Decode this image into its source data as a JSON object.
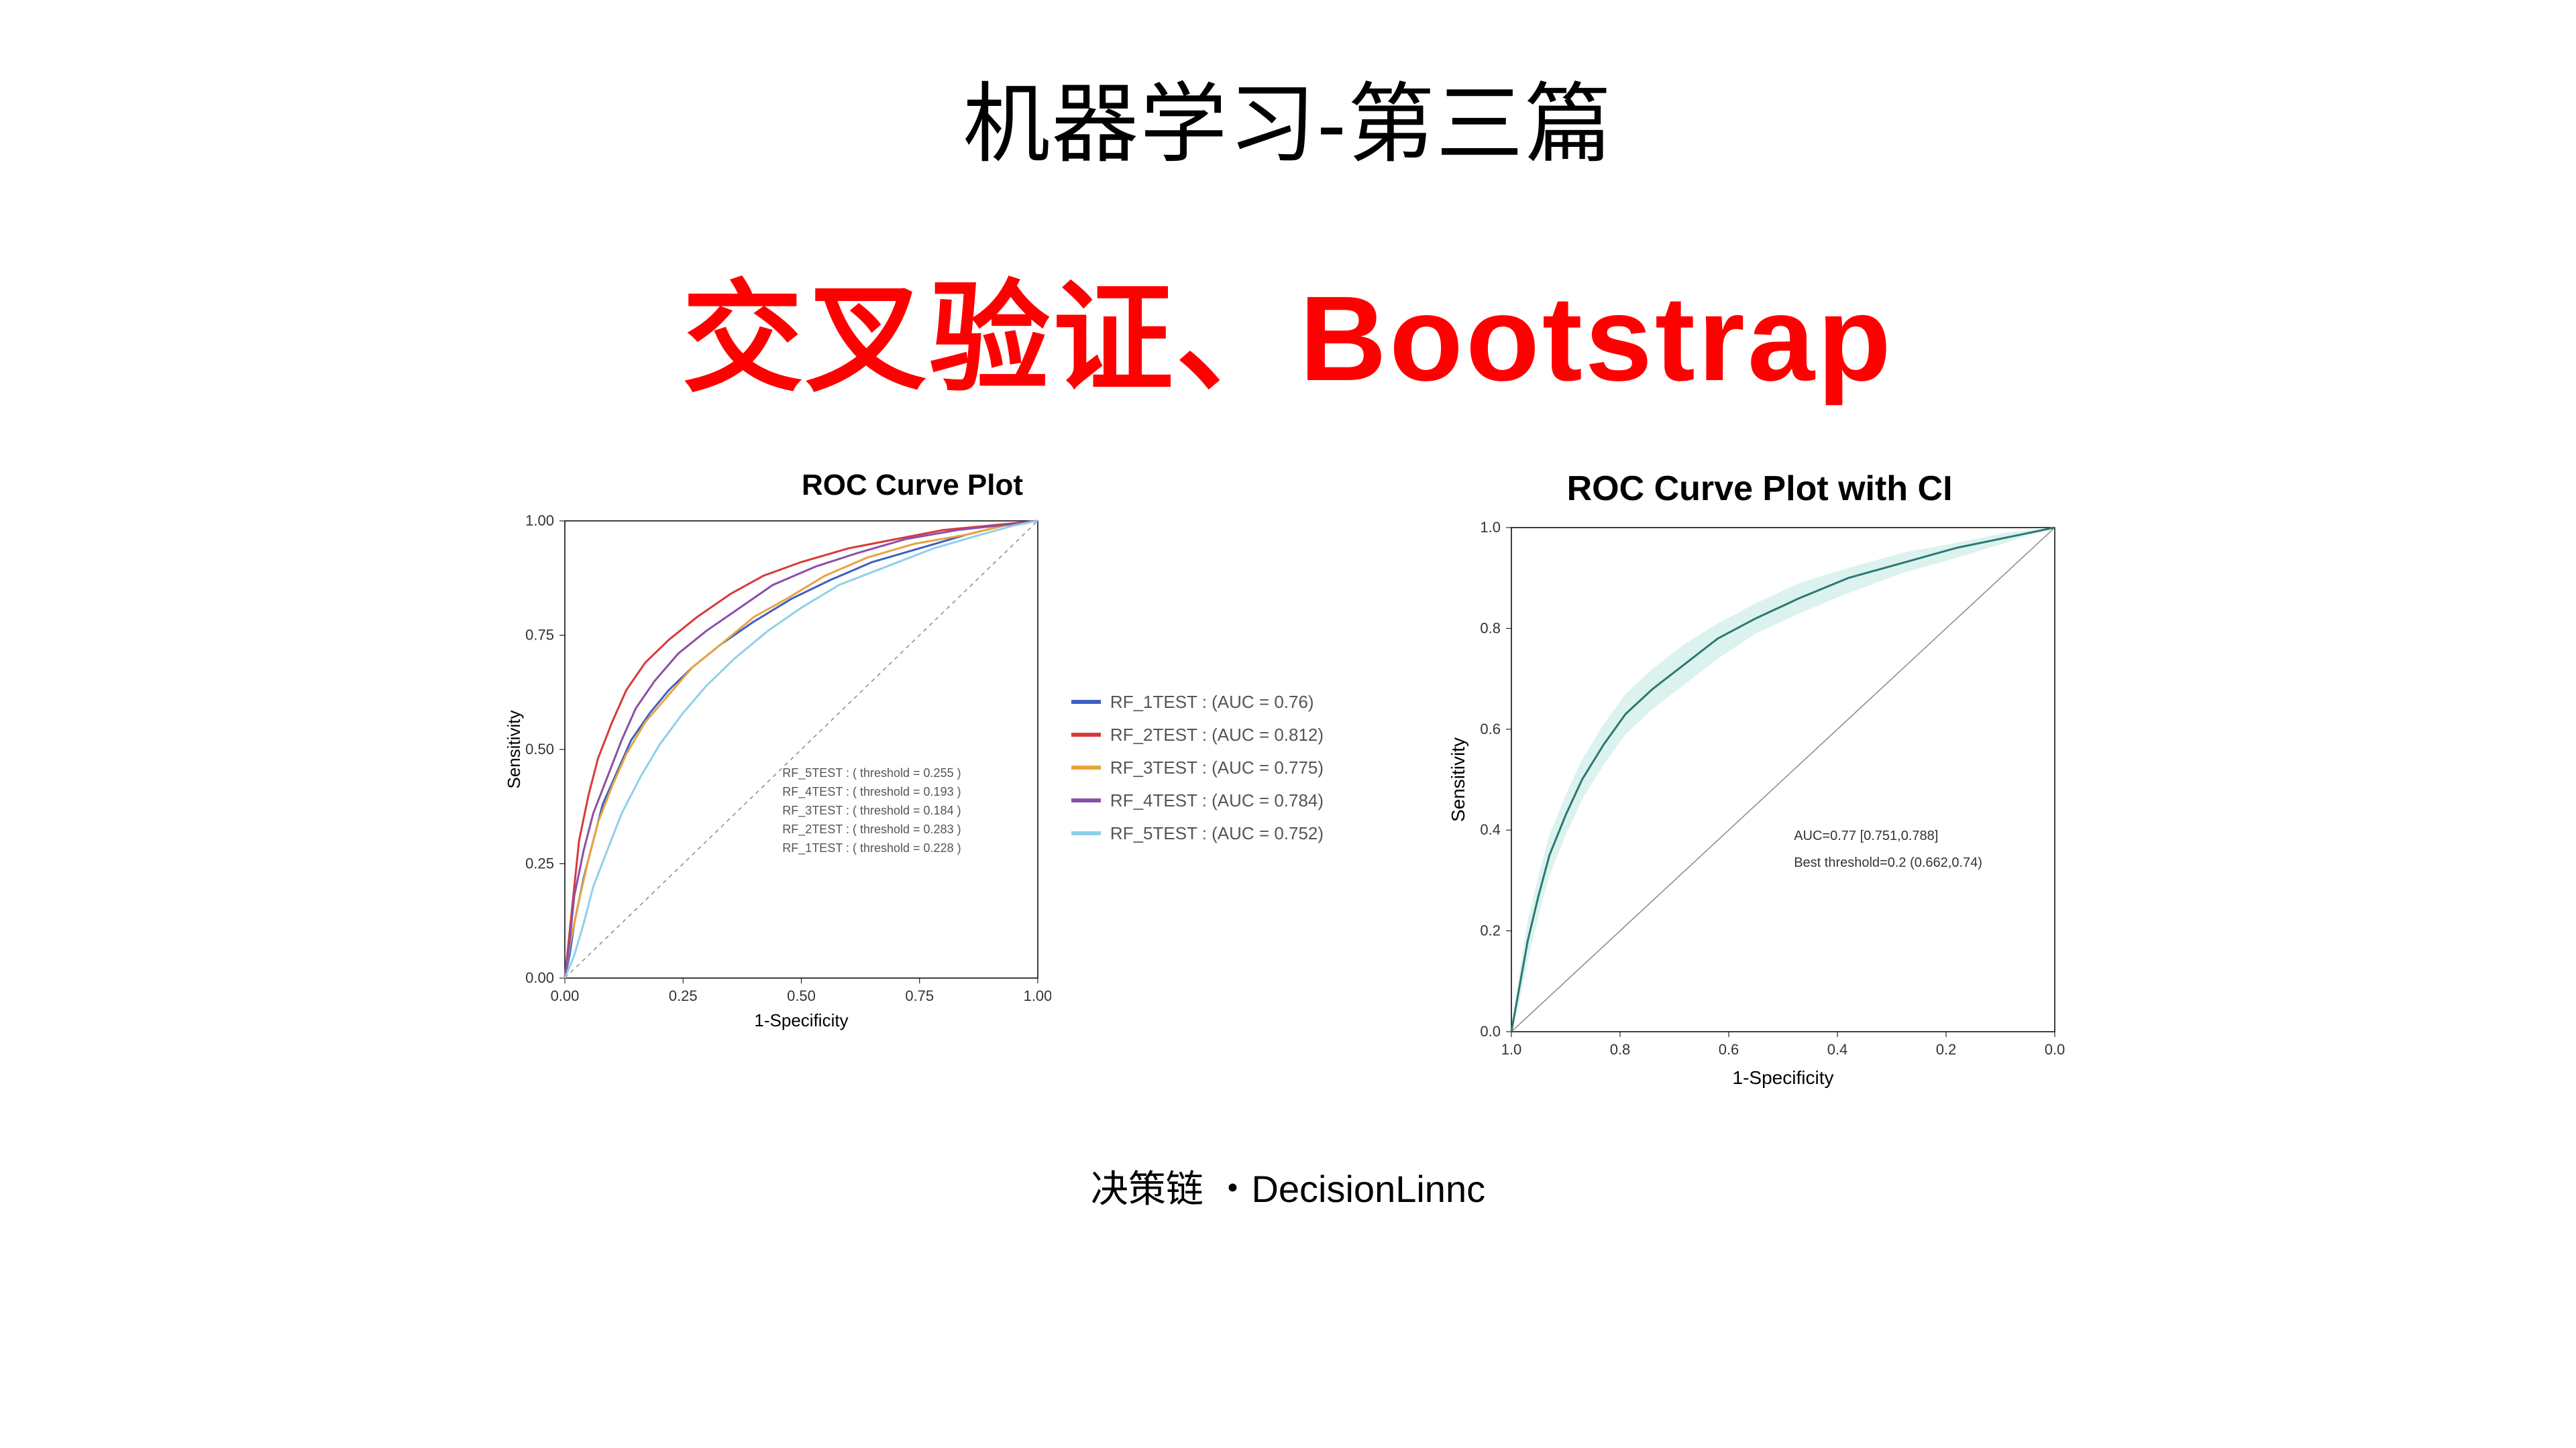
{
  "title_main": "机器学习-第三篇",
  "title_sub": "交叉验证、Bootstrap",
  "footer": "决策链 ・DecisionLinnc",
  "chart_left": {
    "title": "ROC Curve Plot",
    "xlabel": "1-Specificity",
    "ylabel": "Sensitivity",
    "xlim": [
      0,
      1
    ],
    "ylim": [
      0,
      1
    ],
    "xticks": [
      0.0,
      0.25,
      0.5,
      0.75,
      1.0
    ],
    "yticks": [
      0.0,
      0.25,
      0.5,
      0.75,
      1.0
    ],
    "xtick_labels": [
      "0.00",
      "0.25",
      "0.50",
      "0.75",
      "1.00"
    ],
    "ytick_labels": [
      "0.00",
      "0.25",
      "0.50",
      "0.75",
      "1.00"
    ],
    "background_color": "#ffffff",
    "panel_border_color": "#000000",
    "axis_font_size": 26,
    "tick_font_size": 22,
    "diagonal_color": "#888888",
    "diagonal_dash": "6,6",
    "line_width": 3,
    "series": [
      {
        "name": "RF_1TEST",
        "color": "#3b60c4",
        "auc": 0.76,
        "points": [
          [
            0,
            0
          ],
          [
            0.01,
            0.05
          ],
          [
            0.02,
            0.12
          ],
          [
            0.04,
            0.22
          ],
          [
            0.06,
            0.3
          ],
          [
            0.08,
            0.38
          ],
          [
            0.11,
            0.45
          ],
          [
            0.14,
            0.52
          ],
          [
            0.18,
            0.58
          ],
          [
            0.22,
            0.63
          ],
          [
            0.27,
            0.68
          ],
          [
            0.33,
            0.73
          ],
          [
            0.4,
            0.78
          ],
          [
            0.48,
            0.83
          ],
          [
            0.56,
            0.87
          ],
          [
            0.65,
            0.91
          ],
          [
            0.75,
            0.94
          ],
          [
            0.85,
            0.97
          ],
          [
            0.93,
            0.99
          ],
          [
            1,
            1
          ]
        ]
      },
      {
        "name": "RF_2TEST",
        "color": "#d83a3a",
        "auc": 0.812,
        "points": [
          [
            0,
            0
          ],
          [
            0.01,
            0.1
          ],
          [
            0.02,
            0.2
          ],
          [
            0.03,
            0.3
          ],
          [
            0.05,
            0.4
          ],
          [
            0.07,
            0.48
          ],
          [
            0.1,
            0.56
          ],
          [
            0.13,
            0.63
          ],
          [
            0.17,
            0.69
          ],
          [
            0.22,
            0.74
          ],
          [
            0.28,
            0.79
          ],
          [
            0.35,
            0.84
          ],
          [
            0.42,
            0.88
          ],
          [
            0.5,
            0.91
          ],
          [
            0.6,
            0.94
          ],
          [
            0.7,
            0.96
          ],
          [
            0.8,
            0.98
          ],
          [
            0.9,
            0.99
          ],
          [
            1,
            1
          ]
        ]
      },
      {
        "name": "RF_3TEST",
        "color": "#e8a33d",
        "auc": 0.775,
        "points": [
          [
            0,
            0
          ],
          [
            0.01,
            0.07
          ],
          [
            0.03,
            0.17
          ],
          [
            0.05,
            0.26
          ],
          [
            0.07,
            0.34
          ],
          [
            0.1,
            0.42
          ],
          [
            0.13,
            0.49
          ],
          [
            0.17,
            0.56
          ],
          [
            0.22,
            0.62
          ],
          [
            0.27,
            0.68
          ],
          [
            0.33,
            0.73
          ],
          [
            0.4,
            0.79
          ],
          [
            0.47,
            0.83
          ],
          [
            0.55,
            0.88
          ],
          [
            0.64,
            0.92
          ],
          [
            0.74,
            0.95
          ],
          [
            0.85,
            0.97
          ],
          [
            0.93,
            0.99
          ],
          [
            1,
            1
          ]
        ]
      },
      {
        "name": "RF_4TEST",
        "color": "#8a4fa8",
        "auc": 0.784,
        "points": [
          [
            0,
            0
          ],
          [
            0.01,
            0.08
          ],
          [
            0.02,
            0.18
          ],
          [
            0.04,
            0.28
          ],
          [
            0.06,
            0.36
          ],
          [
            0.09,
            0.44
          ],
          [
            0.12,
            0.52
          ],
          [
            0.15,
            0.59
          ],
          [
            0.19,
            0.65
          ],
          [
            0.24,
            0.71
          ],
          [
            0.3,
            0.76
          ],
          [
            0.37,
            0.81
          ],
          [
            0.44,
            0.86
          ],
          [
            0.53,
            0.9
          ],
          [
            0.62,
            0.93
          ],
          [
            0.72,
            0.96
          ],
          [
            0.83,
            0.98
          ],
          [
            0.92,
            0.99
          ],
          [
            1,
            1
          ]
        ]
      },
      {
        "name": "RF_5TEST",
        "color": "#8fd0e8",
        "auc": 0.752,
        "points": [
          [
            0,
            0
          ],
          [
            0.02,
            0.05
          ],
          [
            0.04,
            0.12
          ],
          [
            0.06,
            0.2
          ],
          [
            0.09,
            0.28
          ],
          [
            0.12,
            0.36
          ],
          [
            0.16,
            0.44
          ],
          [
            0.2,
            0.51
          ],
          [
            0.25,
            0.58
          ],
          [
            0.3,
            0.64
          ],
          [
            0.36,
            0.7
          ],
          [
            0.43,
            0.76
          ],
          [
            0.5,
            0.81
          ],
          [
            0.58,
            0.86
          ],
          [
            0.68,
            0.9
          ],
          [
            0.78,
            0.94
          ],
          [
            0.88,
            0.97
          ],
          [
            0.95,
            0.99
          ],
          [
            1,
            1
          ]
        ]
      }
    ],
    "threshold_labels": [
      "RF_5TEST : ( threshold = 0.255 )",
      "RF_4TEST : ( threshold = 0.193 )",
      "RF_3TEST : ( threshold = 0.184 )",
      "RF_2TEST : ( threshold = 0.283 )",
      "RF_1TEST : ( threshold = 0.228 )"
    ],
    "threshold_text_color": "#555555",
    "threshold_font_size": 18,
    "legend_labels": [
      "RF_1TEST : (AUC = 0.76)",
      "RF_2TEST : (AUC = 0.812)",
      "RF_3TEST : (AUC = 0.775)",
      "RF_4TEST : (AUC = 0.784)",
      "RF_5TEST : (AUC = 0.752)"
    ]
  },
  "chart_right": {
    "title": "ROC Curve Plot with CI",
    "xlabel": "1-Specificity",
    "ylabel": "Sensitivity",
    "x_reversed": true,
    "xlim": [
      1.0,
      0.0
    ],
    "ylim": [
      0,
      1
    ],
    "xticks": [
      1.0,
      0.8,
      0.6,
      0.4,
      0.2,
      0.0
    ],
    "yticks": [
      0.0,
      0.2,
      0.4,
      0.6,
      0.8,
      1.0
    ],
    "xtick_labels": [
      "1.0",
      "0.8",
      "0.6",
      "0.4",
      "0.2",
      "0.0"
    ],
    "ytick_labels": [
      "0.0",
      "0.2",
      "0.4",
      "0.6",
      "0.8",
      "1.0"
    ],
    "background_color": "#ffffff",
    "panel_border_color": "#000000",
    "axis_font_size": 28,
    "tick_font_size": 22,
    "diagonal_color": "#888888",
    "diagonal_width": 1.5,
    "line_color": "#2a7a72",
    "line_width": 3,
    "ci_fill": "#c9ebe6",
    "ci_opacity": 0.65,
    "series_center": [
      [
        0,
        0
      ],
      [
        0.015,
        0.09
      ],
      [
        0.03,
        0.18
      ],
      [
        0.05,
        0.27
      ],
      [
        0.07,
        0.35
      ],
      [
        0.1,
        0.43
      ],
      [
        0.13,
        0.5
      ],
      [
        0.17,
        0.57
      ],
      [
        0.21,
        0.63
      ],
      [
        0.26,
        0.68
      ],
      [
        0.32,
        0.73
      ],
      [
        0.38,
        0.78
      ],
      [
        0.45,
        0.82
      ],
      [
        0.53,
        0.86
      ],
      [
        0.62,
        0.9
      ],
      [
        0.72,
        0.93
      ],
      [
        0.82,
        0.96
      ],
      [
        0.91,
        0.98
      ],
      [
        1,
        1
      ]
    ],
    "series_ci_upper": [
      [
        0,
        0
      ],
      [
        0.015,
        0.12
      ],
      [
        0.03,
        0.22
      ],
      [
        0.05,
        0.31
      ],
      [
        0.07,
        0.39
      ],
      [
        0.1,
        0.47
      ],
      [
        0.13,
        0.54
      ],
      [
        0.17,
        0.61
      ],
      [
        0.21,
        0.67
      ],
      [
        0.26,
        0.72
      ],
      [
        0.32,
        0.77
      ],
      [
        0.38,
        0.81
      ],
      [
        0.45,
        0.85
      ],
      [
        0.53,
        0.89
      ],
      [
        0.62,
        0.92
      ],
      [
        0.72,
        0.95
      ],
      [
        0.82,
        0.97
      ],
      [
        0.91,
        0.99
      ],
      [
        1,
        1
      ]
    ],
    "series_ci_lower": [
      [
        0,
        0
      ],
      [
        0.015,
        0.06
      ],
      [
        0.03,
        0.14
      ],
      [
        0.05,
        0.23
      ],
      [
        0.07,
        0.31
      ],
      [
        0.1,
        0.39
      ],
      [
        0.13,
        0.46
      ],
      [
        0.17,
        0.53
      ],
      [
        0.21,
        0.59
      ],
      [
        0.26,
        0.64
      ],
      [
        0.32,
        0.69
      ],
      [
        0.38,
        0.74
      ],
      [
        0.45,
        0.79
      ],
      [
        0.53,
        0.83
      ],
      [
        0.62,
        0.87
      ],
      [
        0.72,
        0.91
      ],
      [
        0.82,
        0.94
      ],
      [
        0.91,
        0.97
      ],
      [
        1,
        1
      ]
    ],
    "annotation_lines": [
      "AUC=0.77 [0.751,0.788]",
      "Best threshold=0.2 (0.662,0.74)"
    ],
    "annotation_color": "#333333",
    "annotation_font_size": 20
  }
}
